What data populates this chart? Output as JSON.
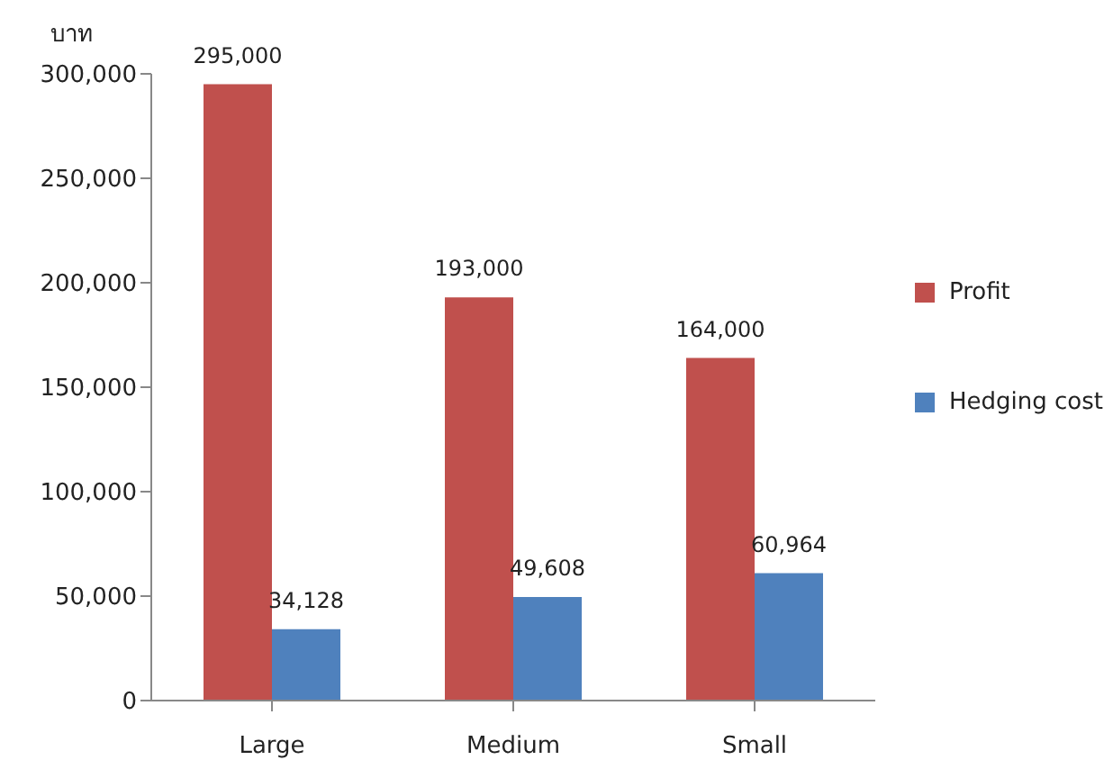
{
  "chart_data": {
    "type": "bar",
    "ylabel": "บาท",
    "categories": [
      "Large",
      "Medium",
      "Small"
    ],
    "series": [
      {
        "name": "Profit",
        "color": "#c0504d",
        "values": [
          295000,
          193000,
          164000
        ],
        "value_labels": [
          "295,000",
          "193,000",
          "164,000"
        ]
      },
      {
        "name": "Hedging cost",
        "color": "#4f81bd",
        "values": [
          34128,
          49608,
          60964
        ],
        "value_labels": [
          "34,128",
          "49,608",
          "60,964"
        ]
      }
    ],
    "ylim": [
      0,
      300000
    ],
    "yticks": [
      0,
      {
        "value": 50000,
        "label": "50,000"
      },
      {
        "value": 100000,
        "label": "100,000"
      },
      {
        "value": 150000,
        "label": "150,000"
      },
      {
        "value": 200000,
        "label": "200,000"
      },
      {
        "value": 250000,
        "label": "250,000"
      },
      {
        "value": 300000,
        "label": "300,000"
      }
    ],
    "legend": "right"
  }
}
